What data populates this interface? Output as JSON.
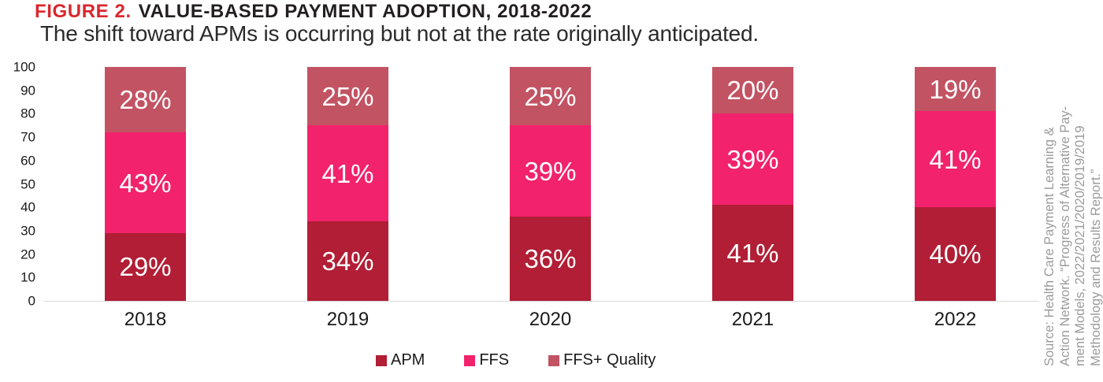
{
  "header": {
    "figure_label": "FIGURE 2.",
    "title": "VALUE-BASED PAYMENT ADOPTION, 2018-2022",
    "subtitle": "The shift toward APMs is occurring but not at the rate originally anticipated."
  },
  "chart_data": {
    "type": "bar",
    "stacked": true,
    "title": "VALUE-BASED PAYMENT ADOPTION, 2018-2022",
    "categories": [
      "2018",
      "2019",
      "2020",
      "2021",
      "2022"
    ],
    "series": [
      {
        "name": "APM",
        "color": "#B11E35",
        "values": [
          29,
          34,
          36,
          41,
          40
        ]
      },
      {
        "name": "FFS",
        "color": "#F2226C",
        "values": [
          43,
          41,
          39,
          39,
          41
        ]
      },
      {
        "name": "FFS+ Quality",
        "color": "#C25363",
        "values": [
          28,
          25,
          25,
          20,
          19
        ]
      }
    ],
    "xlabel": "",
    "ylabel": "",
    "ylim": [
      0,
      100
    ],
    "yticks": [
      0,
      10,
      20,
      30,
      40,
      50,
      60,
      70,
      80,
      90,
      100
    ],
    "grid": false,
    "legend_position": "bottom",
    "value_label_format": "percent"
  },
  "source_note": {
    "lines": [
      "Source: Health Care Payment Learning &",
      "Action Network. “Progress of Alternative Pay-",
      "ment Models, 2022/2021/2020/2019/2019",
      "Methodology and Results Report.”"
    ],
    "color": "#9B9B9A"
  },
  "colors": {
    "figure_label_red": "#D9272E",
    "title_black": "#231F20",
    "apm": "#B11E35",
    "ffs": "#F2226C",
    "ffs_quality": "#C25363",
    "axis_line": "#D8D8D8",
    "background": "#FFFFFF"
  }
}
